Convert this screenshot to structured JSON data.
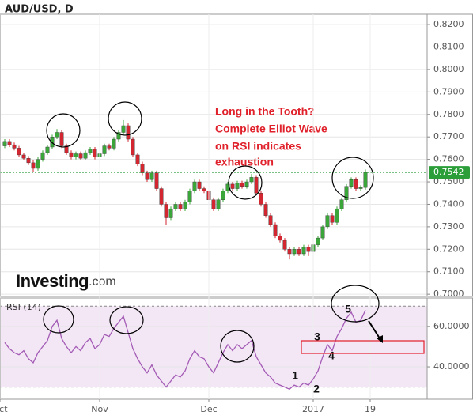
{
  "chart_data": [
    {
      "type": "candlestick",
      "title": "AUD/USD, D",
      "open": [
        0.766,
        0.768,
        0.7665,
        0.765,
        0.762,
        0.7605,
        0.7585,
        0.756,
        0.76,
        0.763,
        0.7655,
        0.77,
        0.772,
        0.766,
        0.763,
        0.761,
        0.7625,
        0.7605,
        0.763,
        0.7645,
        0.761,
        0.7625,
        0.766,
        0.765,
        0.769,
        0.772,
        0.775,
        0.769,
        0.762,
        0.758,
        0.754,
        0.751,
        0.754,
        0.747,
        0.74,
        0.734,
        0.738,
        0.74,
        0.738,
        0.741,
        0.746,
        0.75,
        0.747,
        0.746,
        0.742,
        0.738,
        0.742,
        0.746,
        0.749,
        0.747,
        0.7495,
        0.748,
        0.75,
        0.752,
        0.745,
        0.74,
        0.735,
        0.731,
        0.726,
        0.724,
        0.72,
        0.718,
        0.72,
        0.718,
        0.721,
        0.719,
        0.722,
        0.725,
        0.73,
        0.735,
        0.732,
        0.738,
        0.742,
        0.748,
        0.751,
        0.747,
        0.7475
      ],
      "high": [
        0.769,
        0.769,
        0.7675,
        0.766,
        0.763,
        0.7615,
        0.7595,
        0.761,
        0.764,
        0.7665,
        0.771,
        0.7735,
        0.773,
        0.767,
        0.764,
        0.7635,
        0.7635,
        0.764,
        0.7655,
        0.7655,
        0.7635,
        0.767,
        0.767,
        0.77,
        0.773,
        0.7775,
        0.776,
        0.77,
        0.763,
        0.759,
        0.755,
        0.755,
        0.755,
        0.748,
        0.741,
        0.739,
        0.741,
        0.741,
        0.742,
        0.747,
        0.751,
        0.751,
        0.748,
        0.747,
        0.743,
        0.743,
        0.747,
        0.75,
        0.75,
        0.7505,
        0.7505,
        0.751,
        0.7535,
        0.753,
        0.746,
        0.741,
        0.736,
        0.732,
        0.727,
        0.725,
        0.721,
        0.721,
        0.721,
        0.722,
        0.722,
        0.723,
        0.726,
        0.731,
        0.736,
        0.736,
        0.739,
        0.743,
        0.749,
        0.752,
        0.752,
        0.7485,
        0.7555
      ],
      "low": [
        0.765,
        0.7655,
        0.764,
        0.761,
        0.7595,
        0.7575,
        0.7545,
        0.755,
        0.759,
        0.762,
        0.7645,
        0.769,
        0.765,
        0.762,
        0.76,
        0.76,
        0.7595,
        0.7595,
        0.762,
        0.76,
        0.76,
        0.7615,
        0.764,
        0.764,
        0.768,
        0.771,
        0.768,
        0.761,
        0.757,
        0.753,
        0.75,
        0.75,
        0.746,
        0.739,
        0.731,
        0.733,
        0.737,
        0.737,
        0.737,
        0.74,
        0.745,
        0.746,
        0.745,
        0.741,
        0.737,
        0.737,
        0.741,
        0.745,
        0.746,
        0.746,
        0.747,
        0.747,
        0.749,
        0.744,
        0.739,
        0.734,
        0.73,
        0.725,
        0.723,
        0.719,
        0.7155,
        0.717,
        0.717,
        0.717,
        0.717,
        0.718,
        0.721,
        0.724,
        0.729,
        0.731,
        0.731,
        0.737,
        0.741,
        0.747,
        0.746,
        0.746,
        0.7465
      ],
      "close": [
        0.768,
        0.7665,
        0.765,
        0.762,
        0.7605,
        0.7585,
        0.756,
        0.76,
        0.763,
        0.7655,
        0.77,
        0.772,
        0.766,
        0.763,
        0.761,
        0.7625,
        0.7605,
        0.763,
        0.7645,
        0.761,
        0.7625,
        0.766,
        0.765,
        0.769,
        0.772,
        0.775,
        0.769,
        0.762,
        0.758,
        0.754,
        0.751,
        0.754,
        0.747,
        0.74,
        0.734,
        0.738,
        0.74,
        0.738,
        0.741,
        0.746,
        0.75,
        0.747,
        0.746,
        0.742,
        0.738,
        0.742,
        0.746,
        0.749,
        0.747,
        0.7495,
        0.748,
        0.75,
        0.752,
        0.745,
        0.74,
        0.735,
        0.731,
        0.726,
        0.724,
        0.72,
        0.718,
        0.72,
        0.718,
        0.721,
        0.719,
        0.722,
        0.725,
        0.73,
        0.735,
        0.732,
        0.738,
        0.742,
        0.748,
        0.751,
        0.747,
        0.7475,
        0.7542
      ],
      "up_color": "#3aa63a",
      "down_color": "#d22630",
      "xlim": [
        -1,
        89
      ],
      "ylim": [
        0.699,
        0.8246
      ],
      "yticks": [
        {
          "value": 0.7,
          "label": "0.7000"
        },
        {
          "value": 0.71,
          "label": "0.7100"
        },
        {
          "value": 0.72,
          "label": "0.7200"
        },
        {
          "value": 0.73,
          "label": "0.7300"
        },
        {
          "value": 0.74,
          "label": "0.7400"
        },
        {
          "value": 0.75,
          "label": "0.7500"
        },
        {
          "value": 0.76,
          "label": "0.7600"
        },
        {
          "value": 0.77,
          "label": "0.7700"
        },
        {
          "value": 0.78,
          "label": "0.7800"
        },
        {
          "value": 0.79,
          "label": "0.7900"
        },
        {
          "value": 0.8,
          "label": "0.8000"
        },
        {
          "value": 0.81,
          "label": "0.8100"
        },
        {
          "value": 0.82,
          "label": "0.8200"
        }
      ],
      "grid": true,
      "last_price_line": true,
      "last_price_color": "#2b9e3a",
      "annotation": [
        "Long in the Tooth?",
        "Complete Elliot Wave",
        "on RSI indicates",
        "exhaustion"
      ],
      "watermark": [
        "Investing",
        ".com"
      ]
    },
    {
      "type": "line",
      "series": [
        {
          "name": "RSI (14)",
          "color": "#a35bb5",
          "values": [
            52,
            49,
            47,
            46,
            48,
            44,
            42,
            47,
            50,
            53,
            60,
            63,
            54,
            50,
            47,
            50,
            48,
            52,
            54,
            49,
            51,
            56,
            55,
            59,
            62,
            65,
            57,
            49,
            44,
            40,
            37,
            41,
            36,
            33,
            30,
            33,
            36,
            35,
            38,
            44,
            48,
            45,
            44,
            40,
            37,
            42,
            47,
            51,
            48,
            51,
            49,
            51,
            53,
            45,
            41,
            37,
            35,
            32,
            31,
            30,
            29,
            31,
            30,
            32,
            31,
            34,
            38,
            45,
            51,
            48,
            55,
            59,
            64,
            67,
            62,
            63,
            68
          ]
        }
      ],
      "xlim": [
        -1,
        89
      ],
      "xticks": [
        {
          "value": -1,
          "label": "Oct"
        },
        {
          "value": 20,
          "label": "Nov"
        },
        {
          "value": 43,
          "label": "Dec"
        },
        {
          "value": 65,
          "label": "2017"
        },
        {
          "value": 77,
          "label": "19"
        }
      ],
      "ylim": [
        24,
        74
      ],
      "yticks": [
        {
          "value": 60,
          "label": "60.0000"
        },
        {
          "value": 40,
          "label": "40.0000"
        }
      ],
      "levels": [
        70,
        30
      ],
      "band_color": "#f3e6f5",
      "grid": true,
      "wave_labels": [
        "1",
        "2",
        "3",
        "4",
        "5"
      ]
    }
  ]
}
